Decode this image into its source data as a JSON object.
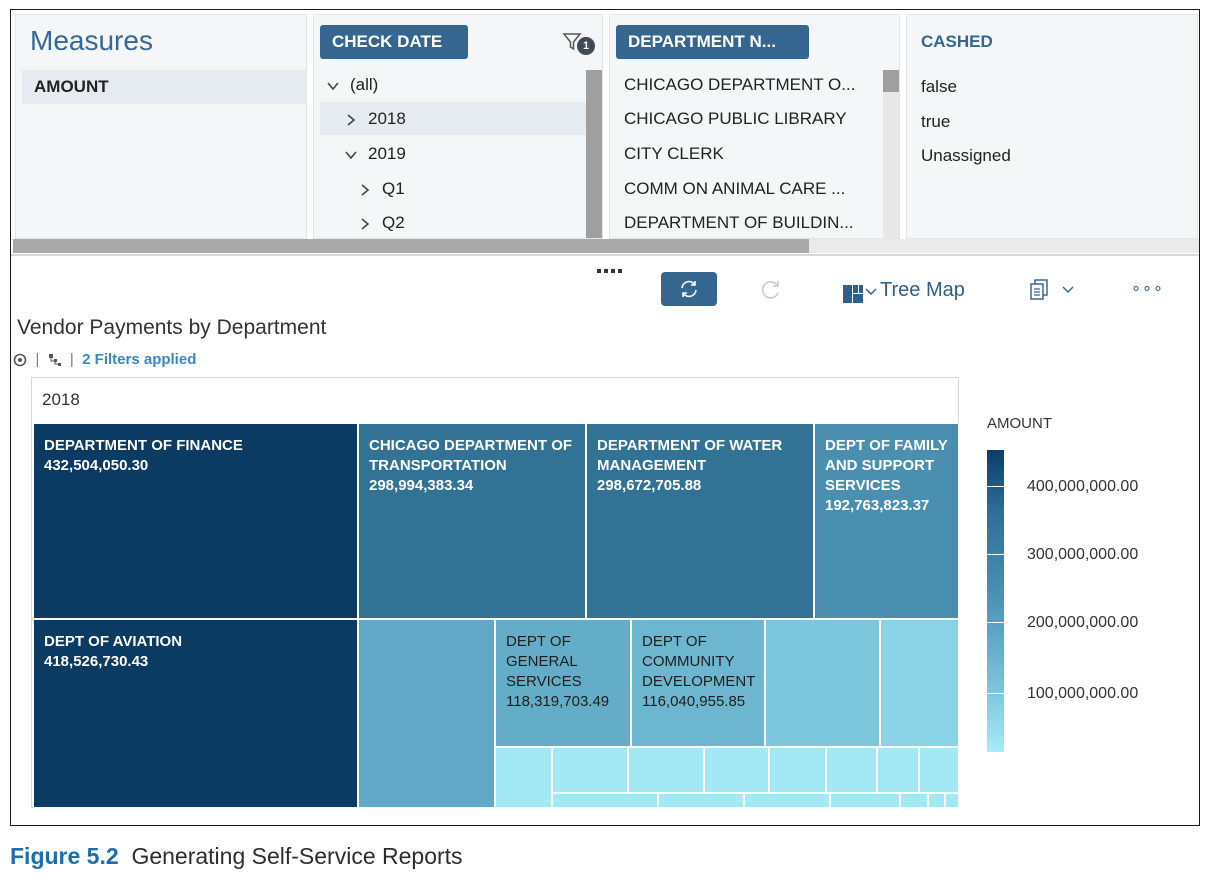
{
  "measures": {
    "title": "Measures",
    "items": [
      "AMOUNT"
    ]
  },
  "check_date": {
    "header": "CHECK DATE",
    "filter_count": "1",
    "rows": [
      {
        "label": "(all)",
        "expanded": true,
        "level": 0
      },
      {
        "label": "2018",
        "expanded": false,
        "level": 1,
        "selected": true
      },
      {
        "label": "2019",
        "expanded": true,
        "level": 1
      },
      {
        "label": "Q1",
        "expanded": false,
        "level": 2
      },
      {
        "label": "Q2",
        "expanded": false,
        "level": 2
      }
    ]
  },
  "department": {
    "header": "DEPARTMENT N...",
    "rows": [
      "CHICAGO DEPARTMENT O...",
      "CHICAGO PUBLIC LIBRARY",
      "CITY CLERK",
      "COMM ON ANIMAL CARE ...",
      "DEPARTMENT OF BUILDIN..."
    ]
  },
  "cashed": {
    "header": "CASHED",
    "rows": [
      "false",
      "true",
      "Unassigned"
    ]
  },
  "toolbar": {
    "chart_type": "Tree Map",
    "more": "∘∘∘"
  },
  "viz": {
    "title": "Vendor Payments by Department",
    "filters_text": "2 Filters applied",
    "year": "2018"
  },
  "chart_data": {
    "type": "treemap",
    "title": "Vendor Payments by Department",
    "group": "2018",
    "measure": "AMOUNT",
    "items": [
      {
        "name": "DEPARTMENT OF FINANCE",
        "value": 432504050.3,
        "display": "432,504,050.30"
      },
      {
        "name": "DEPT OF AVIATION",
        "value": 418526730.43,
        "display": "418,526,730.43"
      },
      {
        "name": "CHICAGO DEPARTMENT OF TRANSPORTATION",
        "value": 298994383.34,
        "display": "298,994,383.34"
      },
      {
        "name": "DEPARTMENT OF WATER MANAGEMENT",
        "value": 298672705.88,
        "display": "298,672,705.88"
      },
      {
        "name": "DEPT OF FAMILY AND SUPPORT SERVICES",
        "value": 192763823.37,
        "display": "192,763,823.37"
      },
      {
        "name": "DEPT OF GENERAL SERVICES",
        "value": 118319703.49,
        "display": "118,319,703.49"
      },
      {
        "name": "DEPT OF COMMUNITY DEVELOPMENT",
        "value": 116040955.85,
        "display": "116,040,955.85"
      }
    ],
    "legend": {
      "title": "AMOUNT",
      "ticks": [
        "400,000,000.00",
        "300,000,000.00",
        "200,000,000.00",
        "100,000,000.00"
      ]
    }
  },
  "caption": {
    "figure": "Figure 5.2",
    "text": "Generating Self-Service Reports"
  },
  "colors": {
    "header_blue": "#35668f",
    "finance": "#0b3a63",
    "mid": "#327395",
    "light": "#61a9c6",
    "lighter": "#7dc7dc",
    "lightest": "#a3e8f5",
    "link": "#3a87c8"
  }
}
